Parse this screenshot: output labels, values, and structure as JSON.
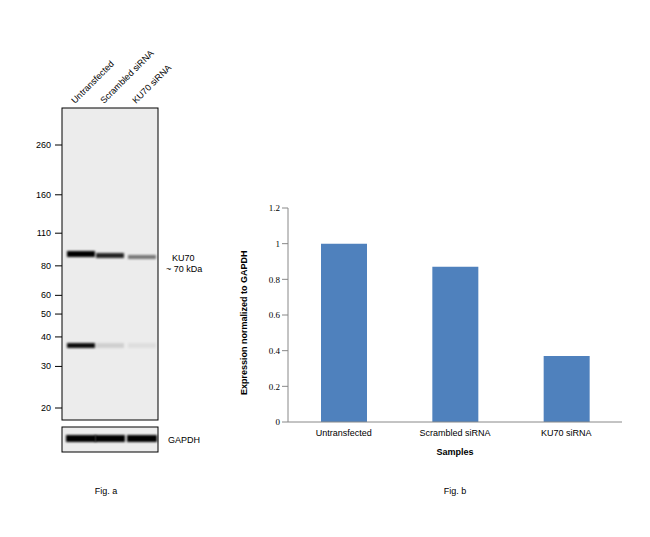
{
  "blot": {
    "caption": "Fig. a",
    "lanes": [
      "Untransfected",
      "Scrambled siRNA",
      "KU70 siRNA"
    ],
    "markers": [
      260,
      160,
      110,
      80,
      60,
      50,
      40,
      30,
      20
    ],
    "target": "KU70",
    "target_size": "~ 70 kDa",
    "loading_control": "GAPDH"
  },
  "chart_data": {
    "type": "bar",
    "caption": "Fig. b",
    "categories": [
      "Untransfected",
      "Scrambled siRNA",
      "KU70 siRNA"
    ],
    "values": [
      1,
      0.87,
      0.37
    ],
    "color": "#4f81bd",
    "ylim": [
      0,
      1.2
    ],
    "yticks": [
      0,
      0.2,
      0.4,
      0.6,
      0.8,
      1,
      1.2
    ],
    "x_label": "Samples",
    "y_label": "Expression normalized to GAPDH",
    "grid": false
  }
}
